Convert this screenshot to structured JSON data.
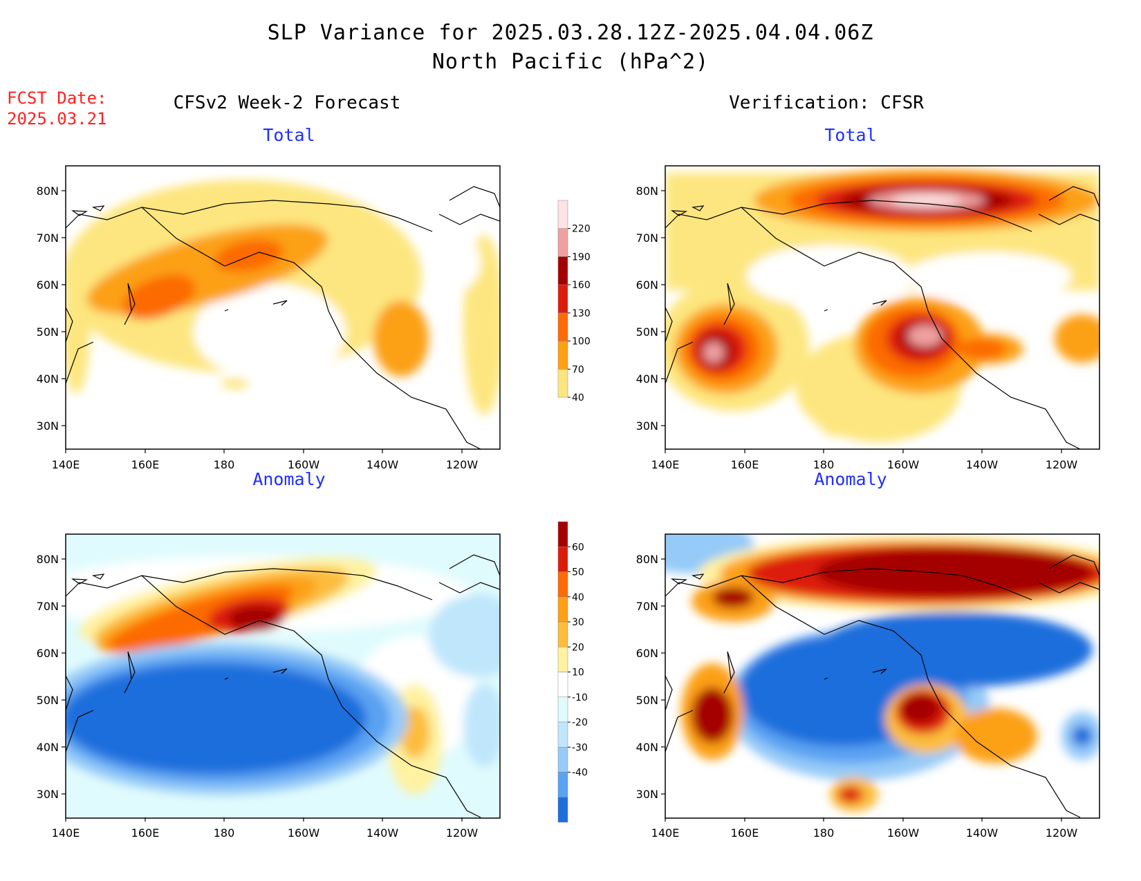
{
  "header": {
    "title_line1": "SLP Variance for 2025.03.28.12Z-2025.04.04.06Z",
    "title_line2": "North Pacific (hPa^2)",
    "fcst_label": "FCST Date:",
    "fcst_date": "2025.03.21",
    "left_column": "CFSv2 Week-2 Forecast",
    "right_column": "Verification: CFSR"
  },
  "axes": {
    "lat_ticks": [
      "80N",
      "70N",
      "60N",
      "50N",
      "40N",
      "30N"
    ],
    "lon_ticks": [
      "140E",
      "160E",
      "180",
      "160W",
      "140W",
      "120W"
    ]
  },
  "panels": [
    {
      "id": "forecast-total",
      "title": "Total",
      "type": "total"
    },
    {
      "id": "verification-total",
      "title": "Total",
      "type": "total"
    },
    {
      "id": "forecast-anomaly",
      "title": "Anomaly",
      "type": "anomaly"
    },
    {
      "id": "verification-anomaly",
      "title": "Anomaly",
      "type": "anomaly"
    }
  ],
  "colorbars": {
    "total": {
      "labels": [
        "220",
        "190",
        "160",
        "130",
        "100",
        "70",
        "40"
      ],
      "colors": [
        "#fde3e3",
        "#f0a0a0",
        "#a50000",
        "#dc1c0a",
        "#fc6b06",
        "#fca014",
        "#fde67f"
      ]
    },
    "anomaly": {
      "labels": [
        "60",
        "50",
        "40",
        "30",
        "20",
        "10",
        "-10",
        "-20",
        "-30",
        "-40"
      ],
      "colors": [
        "#a50000",
        "#dc1c0a",
        "#fc6b06",
        "#fca014",
        "#fcbd3c",
        "#fff2a0",
        "#ffffff",
        "#e0fbfd",
        "#bfe6fb",
        "#96caf8",
        "#5aa2f2",
        "#1e6edc"
      ]
    }
  }
}
